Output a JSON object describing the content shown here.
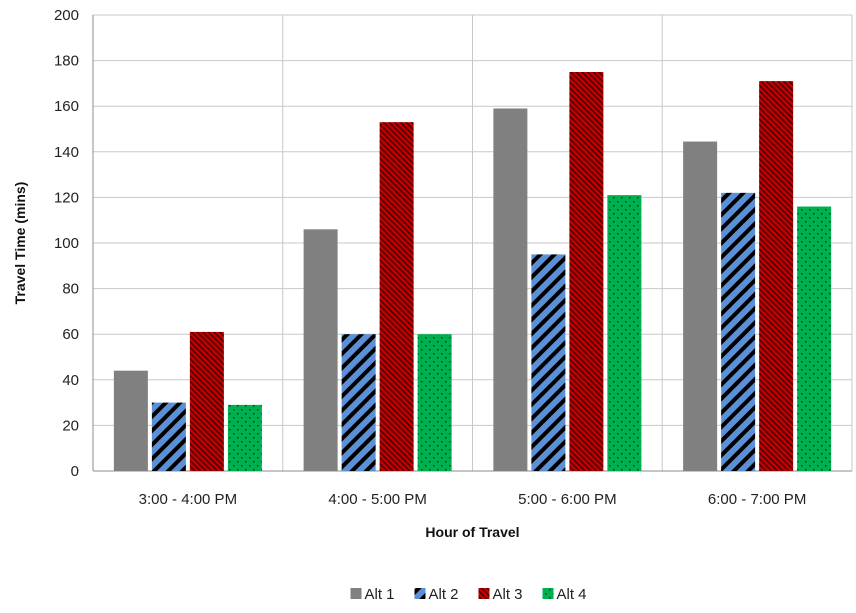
{
  "chart_data": {
    "type": "bar",
    "title": "",
    "xlabel": "Hour of Travel",
    "ylabel": "Travel Time (mins)",
    "ylim": [
      0,
      200
    ],
    "yticks": [
      0,
      20,
      40,
      60,
      80,
      100,
      120,
      140,
      160,
      180,
      200
    ],
    "categories": [
      "3:00 - 4:00 PM",
      "4:00 - 5:00 PM",
      "5:00 - 6:00 PM",
      "6:00 - 7:00 PM"
    ],
    "series": [
      {
        "name": "Alt 1",
        "values": [
          44,
          106,
          159,
          144.5
        ],
        "color": "#808080",
        "pattern": "solid"
      },
      {
        "name": "Alt 2",
        "values": [
          30,
          60,
          95,
          122
        ],
        "color": "#5b8fd6",
        "pattern": "wide-diagonal-stripes"
      },
      {
        "name": "Alt 3",
        "values": [
          61,
          153,
          175,
          171
        ],
        "color": "#c00000",
        "pattern": "dense-diagonal-hatch"
      },
      {
        "name": "Alt 4",
        "values": [
          29,
          60,
          121,
          116
        ],
        "color": "#00b050",
        "pattern": "dots"
      }
    ],
    "grid": true,
    "legend": "bottom-center"
  }
}
